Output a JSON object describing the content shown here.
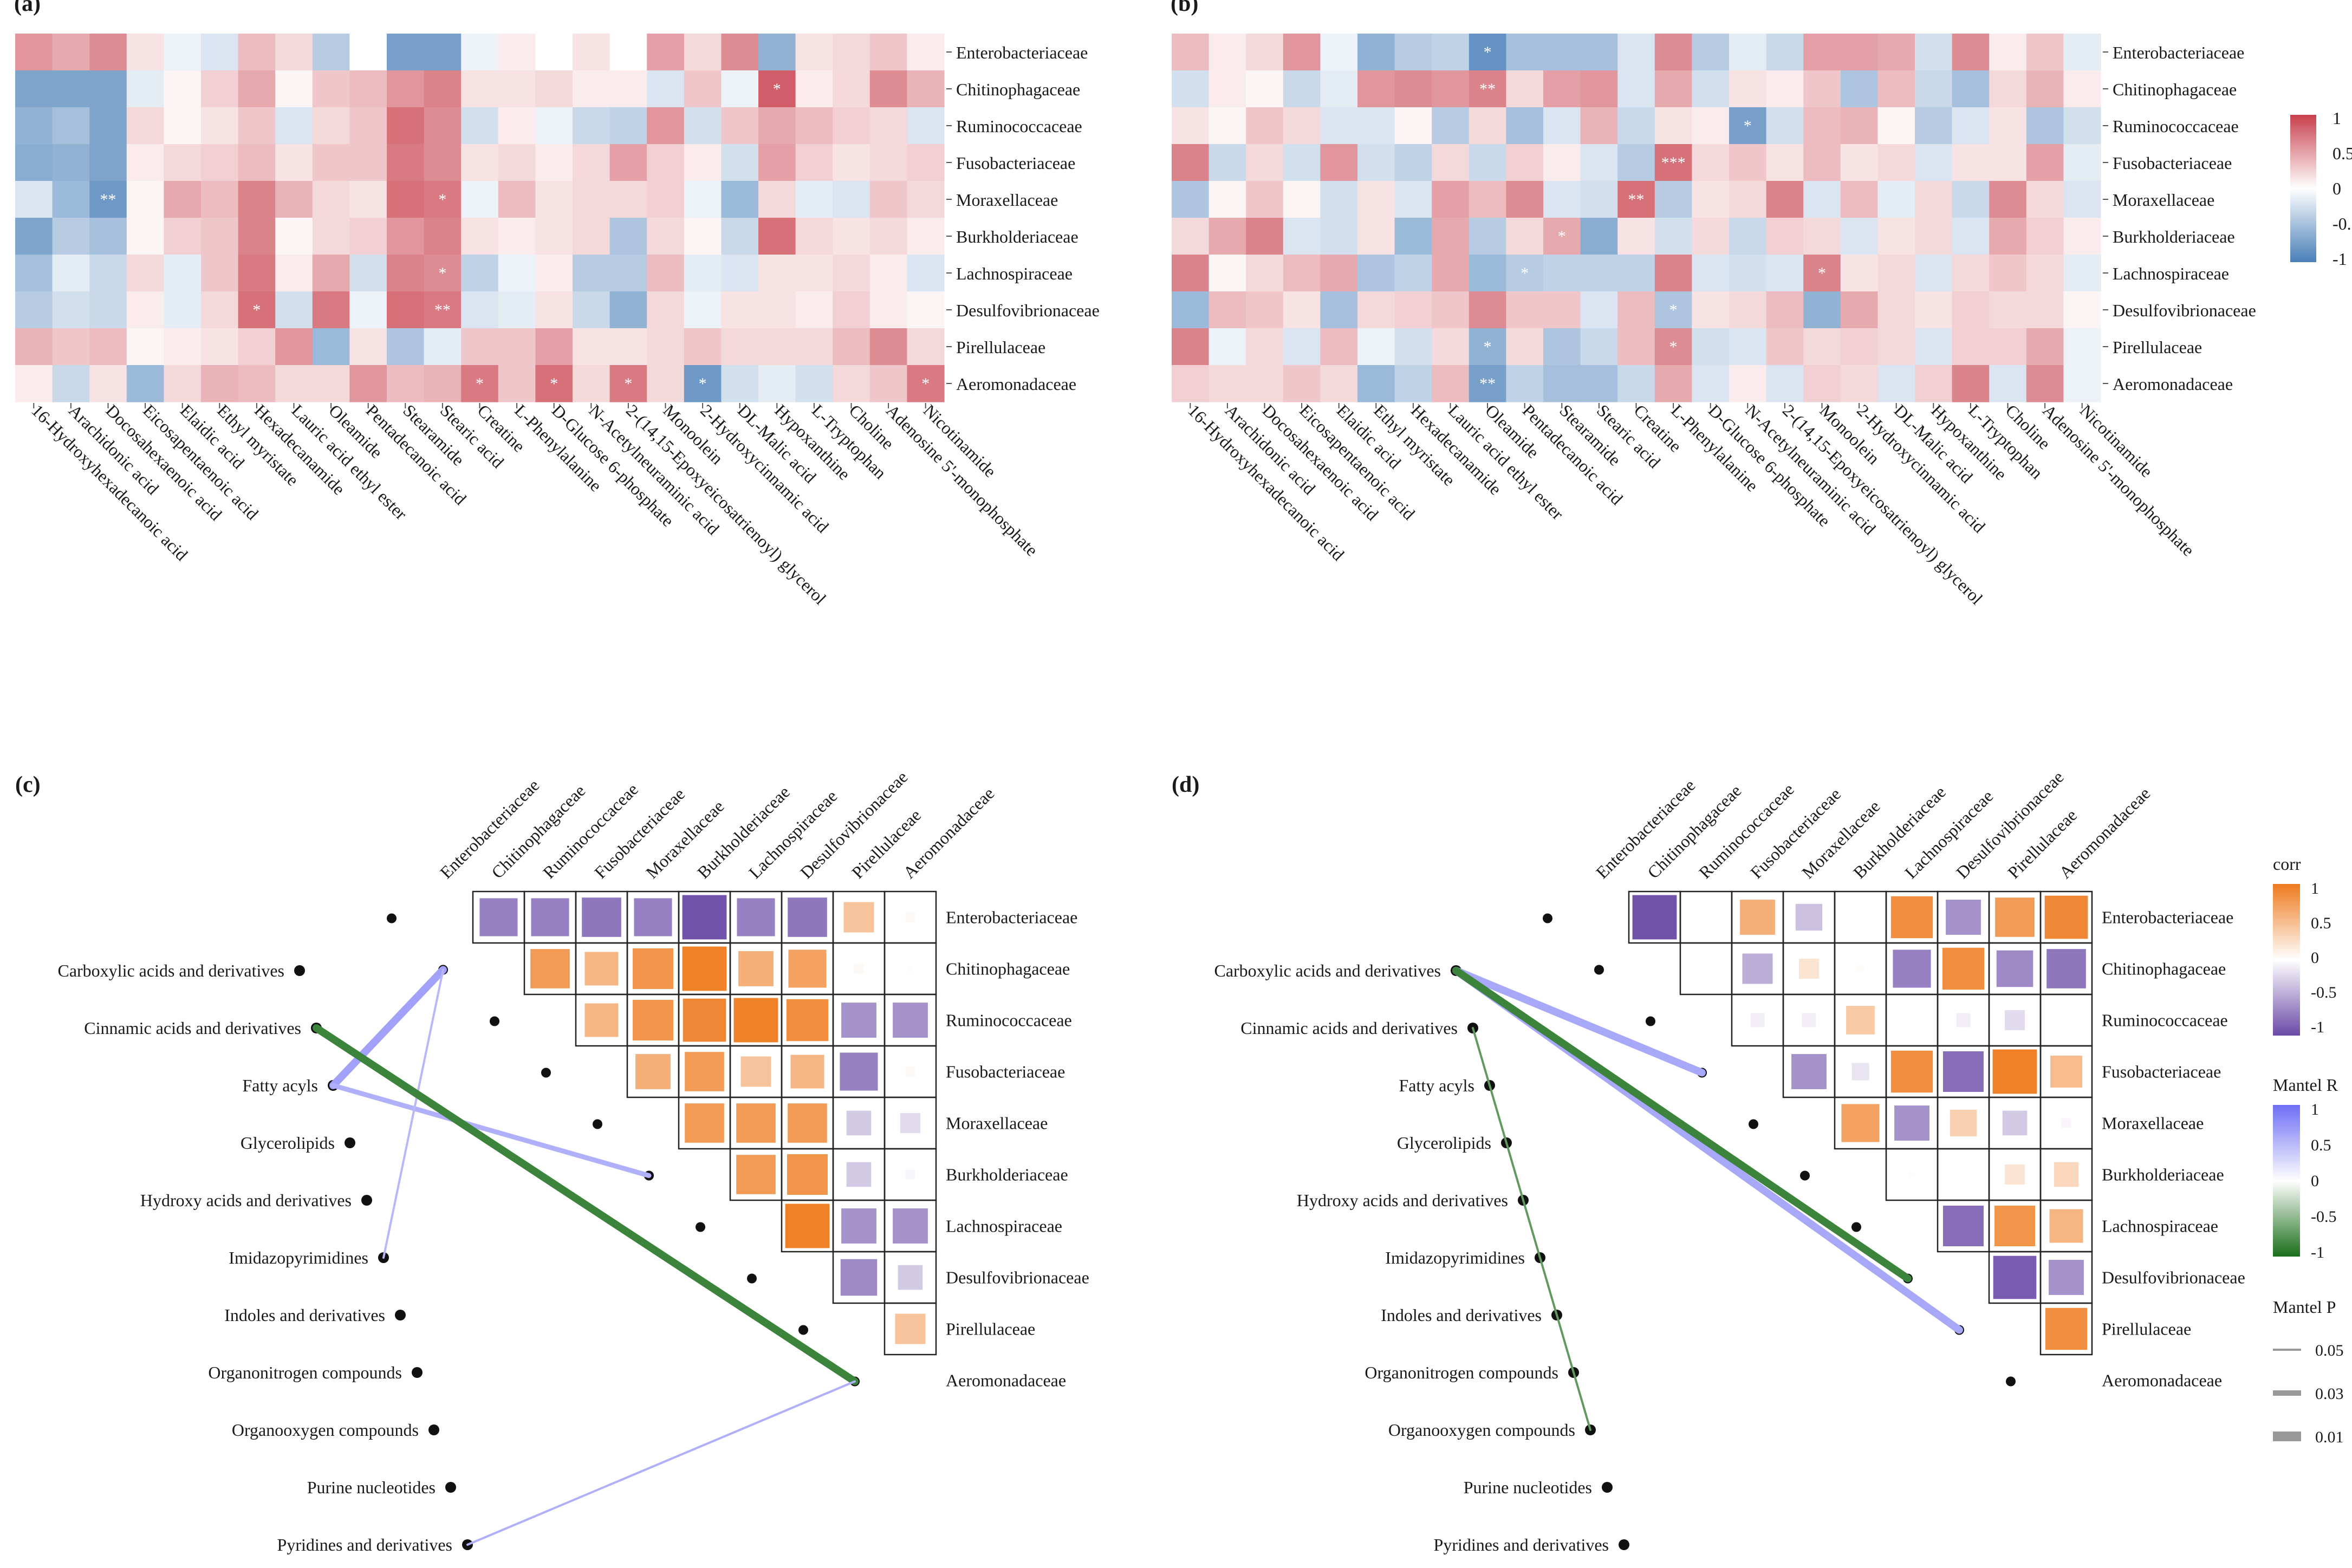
{
  "panel_labels": [
    "(a)",
    "(b)",
    "(c)",
    "(d)"
  ],
  "families": [
    "Enterobacteriaceae",
    "Chitinophagaceae",
    "Ruminococcaceae",
    "Fusobacteriaceae",
    "Moraxellaceae",
    "Burkholderiaceae",
    "Lachnospiraceae",
    "Desulfovibrionaceae",
    "Pirellulaceae",
    "Aeromonadaceae"
  ],
  "metabolites": [
    "16-Hydroxyhexadecanoic acid",
    "Arachidonic acid",
    "Docosahexaenoic acid",
    "Eicosapentaenoic acid",
    "Elaidic acid",
    "Ethyl myristate",
    "Hexadecanamide",
    "Lauric acid ethyl ester",
    "Oleamide",
    "Pentadecanoic acid",
    "Stearamide",
    "Stearic acid",
    "Creatine",
    "L-Phenylalanine",
    "D-Glucose 6-phosphate",
    "N-Acetylneuraminic acid",
    "2-(14,15-Epoxyeicosatrienoyl) glycerol",
    "Monoolein",
    "2-Hydroxycinnamic acid",
    "DL-Malic acid",
    "Hypoxanthine",
    "L-Tryptophan",
    "Choline",
    "Adenosine 5'-monophosphate",
    "Nicotinamide"
  ],
  "classes": [
    "Carboxylic acids and derivatives",
    "Cinnamic acids and derivatives",
    "Fatty acyls",
    "Glycerolipids",
    "Hydroxy acids and derivatives",
    "Imidazopyrimidines",
    "Indoles and derivatives",
    "Organonitrogen compounds",
    "Organooxygen compounds",
    "Purine nucleotides",
    "Pyridines and derivatives"
  ],
  "heatmap_legend": {
    "ticks": [
      "1",
      "0.5",
      "0",
      "-0.5",
      "-1"
    ]
  },
  "corr_legend": {
    "title": "corr",
    "ticks": [
      "1",
      "0.5",
      "0",
      "-0.5",
      "-1"
    ]
  },
  "mantel_r_legend": {
    "title": "Mantel R",
    "ticks": [
      "1",
      "0.5",
      "0",
      "-0.5",
      "-1"
    ]
  },
  "mantel_p_legend": {
    "title": "Mantel P",
    "items": [
      "0.05",
      "0.03",
      "0.01"
    ]
  },
  "colors": {
    "neg": "#4a7fb8",
    "pos": "#c8404c",
    "corr_pos": "#ee7a1e",
    "corr_neg": "#6a4aa6",
    "mantel_pos": "#6e6ef5",
    "mantel_neg": "#1a6e1a"
  },
  "chart_data": [
    {
      "type": "heatmap",
      "panel": "(a)",
      "rows_key": "families",
      "cols_key": "metabolites",
      "zlim": [
        -1,
        1
      ],
      "values": [
        [
          0.55,
          0.45,
          0.6,
          0.15,
          -0.1,
          -0.2,
          0.35,
          0.2,
          -0.4,
          0,
          -0.75,
          -0.75,
          -0.1,
          0.1,
          0,
          0.15,
          0,
          0.5,
          0.2,
          0.6,
          -0.6,
          0.15,
          0.2,
          0.3,
          0.1
        ],
        [
          -0.7,
          -0.7,
          -0.7,
          -0.15,
          0.05,
          0.25,
          0.45,
          0.05,
          0.3,
          0.35,
          0.55,
          0.65,
          0.15,
          0.15,
          0.2,
          0.1,
          0.1,
          -0.2,
          0.3,
          -0.1,
          0.85,
          0.1,
          0.2,
          0.6,
          0.4
        ],
        [
          -0.6,
          -0.5,
          -0.7,
          0.2,
          0.05,
          0.15,
          0.3,
          -0.2,
          0.2,
          0.3,
          0.75,
          0.6,
          -0.25,
          0.1,
          -0.1,
          -0.3,
          -0.35,
          0.55,
          -0.25,
          0.3,
          0.45,
          0.35,
          0.25,
          0.2,
          -0.2
        ],
        [
          -0.65,
          -0.6,
          -0.7,
          0.1,
          0.2,
          0.25,
          0.35,
          0.15,
          0.3,
          0.3,
          0.7,
          0.6,
          0.15,
          0.2,
          0.1,
          0.2,
          0.5,
          0.25,
          0.1,
          -0.25,
          0.5,
          0.25,
          0.15,
          0.2,
          0.25
        ],
        [
          -0.2,
          -0.55,
          -0.8,
          0.05,
          0.45,
          0.35,
          0.65,
          0.4,
          0.2,
          0.15,
          0.75,
          0.7,
          -0.1,
          0.35,
          0.15,
          0.2,
          0.2,
          0.25,
          -0.1,
          -0.55,
          0.2,
          -0.15,
          -0.2,
          0.3,
          0.2
        ],
        [
          -0.7,
          -0.4,
          -0.5,
          0.05,
          0.25,
          0.3,
          0.65,
          0.05,
          0.2,
          0.25,
          0.55,
          0.65,
          0.15,
          0.1,
          0.15,
          0.2,
          -0.45,
          0.2,
          0.05,
          -0.3,
          0.75,
          0.2,
          0.15,
          0.2,
          0.1
        ],
        [
          -0.5,
          -0.15,
          -0.3,
          0.2,
          -0.15,
          0.3,
          0.7,
          0.1,
          0.45,
          -0.25,
          0.65,
          0.6,
          -0.35,
          -0.1,
          0.1,
          -0.4,
          -0.4,
          0.35,
          -0.15,
          -0.2,
          0.15,
          0.15,
          0.2,
          0.1,
          -0.2
        ],
        [
          -0.4,
          -0.25,
          -0.3,
          0.1,
          -0.15,
          0.2,
          0.75,
          -0.25,
          0.7,
          -0.1,
          0.75,
          0.7,
          -0.2,
          -0.15,
          0.15,
          -0.3,
          -0.6,
          0.2,
          -0.1,
          0.15,
          0.15,
          0.1,
          0.25,
          0.1,
          0.05
        ],
        [
          0.4,
          0.3,
          0.35,
          0.05,
          0.1,
          0.15,
          0.25,
          0.55,
          -0.55,
          0.15,
          -0.45,
          -0.15,
          0.3,
          0.3,
          0.5,
          0.15,
          0.15,
          0.2,
          0.3,
          0.2,
          0.2,
          0.2,
          0.35,
          0.6,
          0.2
        ],
        [
          0.1,
          -0.3,
          0.15,
          -0.55,
          0.2,
          0.4,
          0.35,
          0.2,
          0.2,
          0.55,
          0.35,
          0.4,
          0.7,
          0.3,
          0.75,
          0.2,
          0.7,
          0.2,
          -0.8,
          -0.25,
          -0.15,
          -0.25,
          0.2,
          0.3,
          0.7
        ]
      ],
      "stars": [
        [
          1,
          20,
          "*"
        ],
        [
          4,
          2,
          "**"
        ],
        [
          4,
          11,
          "*"
        ],
        [
          6,
          11,
          "*"
        ],
        [
          7,
          6,
          "*"
        ],
        [
          7,
          11,
          "**"
        ],
        [
          9,
          12,
          "*"
        ],
        [
          9,
          14,
          "*"
        ],
        [
          9,
          16,
          "*"
        ],
        [
          9,
          18,
          "*"
        ],
        [
          9,
          24,
          "*"
        ]
      ]
    },
    {
      "type": "heatmap",
      "panel": "(b)",
      "rows_key": "families",
      "cols_key": "metabolites",
      "zlim": [
        -1,
        1
      ],
      "values": [
        [
          0.35,
          0.1,
          0.2,
          0.55,
          -0.1,
          -0.6,
          -0.4,
          -0.35,
          -0.85,
          -0.5,
          -0.5,
          -0.5,
          -0.2,
          0.6,
          -0.4,
          -0.15,
          -0.3,
          0.5,
          0.5,
          0.45,
          -0.25,
          0.6,
          0.1,
          0.3,
          -0.15
        ],
        [
          -0.25,
          0.1,
          0.05,
          -0.3,
          -0.15,
          0.55,
          0.6,
          0.55,
          0.65,
          0.2,
          0.5,
          0.55,
          -0.2,
          0.45,
          -0.25,
          0.15,
          0.1,
          0.3,
          -0.45,
          0.35,
          -0.3,
          -0.5,
          0.2,
          0.4,
          0.1
        ],
        [
          0.15,
          0.05,
          0.3,
          0.2,
          -0.2,
          -0.2,
          0.05,
          -0.4,
          0.2,
          -0.5,
          -0.2,
          0.4,
          -0.3,
          0.15,
          0.1,
          -0.75,
          -0.25,
          0.35,
          0.4,
          0.05,
          -0.4,
          -0.2,
          0.15,
          -0.45,
          -0.25
        ],
        [
          0.65,
          -0.3,
          0.2,
          -0.25,
          0.55,
          -0.25,
          -0.35,
          0.2,
          -0.3,
          0.25,
          0.1,
          -0.2,
          -0.4,
          0.75,
          0.2,
          0.3,
          0.15,
          0.35,
          0.15,
          0.2,
          -0.2,
          0.15,
          0.15,
          0.5,
          -0.15
        ],
        [
          -0.45,
          0.05,
          0.3,
          0.05,
          -0.25,
          0.15,
          -0.2,
          0.5,
          0.35,
          0.6,
          -0.2,
          -0.25,
          0.75,
          -0.4,
          0.15,
          0.2,
          0.65,
          -0.2,
          0.35,
          -0.15,
          0.2,
          -0.3,
          0.6,
          0.2,
          -0.2
        ],
        [
          0.2,
          0.45,
          0.65,
          -0.2,
          -0.25,
          0.15,
          -0.55,
          0.45,
          -0.4,
          0.2,
          0.45,
          -0.65,
          0.15,
          -0.25,
          0.2,
          -0.3,
          0.25,
          0.2,
          -0.2,
          0.15,
          0.2,
          -0.2,
          0.45,
          0.25,
          0.1
        ],
        [
          0.65,
          0.05,
          0.2,
          0.35,
          0.45,
          -0.45,
          -0.35,
          0.45,
          -0.55,
          -0.4,
          -0.35,
          -0.35,
          -0.35,
          0.65,
          -0.2,
          -0.25,
          -0.2,
          0.65,
          0.15,
          0.2,
          -0.2,
          0.2,
          0.3,
          0.2,
          -0.15
        ],
        [
          -0.55,
          0.35,
          0.3,
          0.15,
          -0.5,
          0.2,
          0.25,
          0.3,
          0.6,
          0.3,
          0.3,
          -0.2,
          0.35,
          -0.45,
          0.15,
          0.2,
          0.35,
          -0.6,
          0.45,
          0.2,
          0.15,
          0.25,
          0.2,
          0.2,
          0.05
        ],
        [
          0.65,
          -0.1,
          0.2,
          -0.2,
          0.35,
          -0.1,
          -0.25,
          0.2,
          -0.6,
          0.2,
          -0.45,
          -0.3,
          0.35,
          0.6,
          -0.25,
          -0.2,
          0.3,
          0.2,
          0.25,
          0.2,
          -0.2,
          0.25,
          0.25,
          0.45,
          -0.1
        ],
        [
          0.25,
          0.2,
          0.2,
          0.3,
          0.2,
          -0.55,
          -0.35,
          0.35,
          -0.75,
          -0.35,
          -0.5,
          -0.5,
          -0.3,
          0.45,
          -0.2,
          0.1,
          -0.2,
          0.25,
          0.2,
          -0.2,
          0.25,
          0.65,
          -0.2,
          0.6,
          -0.1
        ]
      ],
      "stars": [
        [
          0,
          8,
          "*"
        ],
        [
          1,
          8,
          "**"
        ],
        [
          2,
          15,
          "*"
        ],
        [
          3,
          13,
          "***"
        ],
        [
          4,
          12,
          "**"
        ],
        [
          5,
          10,
          "*"
        ],
        [
          6,
          9,
          "*"
        ],
        [
          6,
          17,
          "*"
        ],
        [
          7,
          13,
          "*"
        ],
        [
          8,
          8,
          "*"
        ],
        [
          8,
          13,
          "*"
        ],
        [
          9,
          8,
          "**"
        ]
      ]
    },
    {
      "type": "correlogram",
      "panel": "(c)",
      "labels_key": "families",
      "upper_triangle": [
        [
          1,
          2,
          -0.7
        ],
        [
          1,
          3,
          -0.7
        ],
        [
          1,
          4,
          -0.75
        ],
        [
          1,
          5,
          -0.7
        ],
        [
          1,
          6,
          -0.95
        ],
        [
          1,
          7,
          -0.7
        ],
        [
          1,
          8,
          -0.75
        ],
        [
          1,
          9,
          0.45
        ],
        [
          1,
          10,
          0.05
        ],
        [
          2,
          3,
          0.75
        ],
        [
          2,
          4,
          0.55
        ],
        [
          2,
          5,
          0.8
        ],
        [
          2,
          6,
          0.95
        ],
        [
          2,
          7,
          0.6
        ],
        [
          2,
          8,
          0.7
        ],
        [
          2,
          9,
          0.05
        ],
        [
          2,
          10,
          0.02
        ],
        [
          3,
          4,
          0.55
        ],
        [
          3,
          5,
          0.8
        ],
        [
          3,
          6,
          0.9
        ],
        [
          3,
          7,
          0.95
        ],
        [
          3,
          8,
          0.85
        ],
        [
          3,
          9,
          -0.6
        ],
        [
          3,
          10,
          -0.6
        ],
        [
          4,
          5,
          0.6
        ],
        [
          4,
          6,
          0.75
        ],
        [
          4,
          7,
          0.45
        ],
        [
          4,
          8,
          0.55
        ],
        [
          4,
          9,
          -0.7
        ],
        [
          4,
          10,
          0.05
        ],
        [
          5,
          6,
          0.75
        ],
        [
          5,
          7,
          0.75
        ],
        [
          5,
          8,
          0.75
        ],
        [
          5,
          9,
          -0.3
        ],
        [
          5,
          10,
          -0.2
        ],
        [
          6,
          7,
          0.75
        ],
        [
          6,
          8,
          0.8
        ],
        [
          6,
          9,
          -0.3
        ],
        [
          6,
          10,
          -0.05
        ],
        [
          7,
          8,
          0.95
        ],
        [
          7,
          9,
          -0.6
        ],
        [
          7,
          10,
          -0.6
        ],
        [
          8,
          9,
          -0.65
        ],
        [
          8,
          10,
          -0.3
        ],
        [
          9,
          10,
          0.45
        ]
      ],
      "mantel_links": [
        {
          "class": "Fatty acyls",
          "family": "Chitinophagaceae",
          "r": 0.65,
          "p": 0.01
        },
        {
          "class": "Fatty acyls",
          "family": "Burkholderiaceae",
          "r": 0.55,
          "p": 0.03
        },
        {
          "class": "Imidazopyrimidines",
          "family": "Chitinophagaceae",
          "r": 0.5,
          "p": 0.05
        },
        {
          "class": "Cinnamic acids and derivatives",
          "family": "Aeromonadaceae",
          "r": -0.85,
          "p": 0.01
        },
        {
          "class": "Pyridines and derivatives",
          "family": "Aeromonadaceae",
          "r": 0.55,
          "p": 0.05
        }
      ]
    },
    {
      "type": "correlogram",
      "panel": "(d)",
      "labels_key": "families",
      "upper_triangle": [
        [
          1,
          2,
          -0.95
        ],
        [
          1,
          3,
          0
        ],
        [
          1,
          4,
          0.6
        ],
        [
          1,
          5,
          -0.35
        ],
        [
          1,
          6,
          0
        ],
        [
          1,
          7,
          0.85
        ],
        [
          1,
          8,
          -0.6
        ],
        [
          1,
          9,
          0.75
        ],
        [
          1,
          10,
          0.9
        ],
        [
          2,
          3,
          0
        ],
        [
          2,
          4,
          -0.45
        ],
        [
          2,
          5,
          0.2
        ],
        [
          2,
          6,
          0.03
        ],
        [
          2,
          7,
          -0.7
        ],
        [
          2,
          8,
          0.85
        ],
        [
          2,
          9,
          -0.65
        ],
        [
          2,
          10,
          -0.75
        ],
        [
          3,
          4,
          -0.1
        ],
        [
          3,
          5,
          -0.1
        ],
        [
          3,
          6,
          0.4
        ],
        [
          3,
          7,
          0
        ],
        [
          3,
          8,
          -0.1
        ],
        [
          3,
          9,
          -0.2
        ],
        [
          4,
          5,
          -0.6
        ],
        [
          4,
          6,
          -0.15
        ],
        [
          4,
          7,
          0.85
        ],
        [
          4,
          8,
          -0.8
        ],
        [
          4,
          9,
          0.95
        ],
        [
          4,
          10,
          0.5
        ],
        [
          5,
          6,
          0.7
        ],
        [
          5,
          7,
          -0.6
        ],
        [
          5,
          8,
          0.35
        ],
        [
          5,
          9,
          -0.3
        ],
        [
          5,
          10,
          -0.05
        ],
        [
          6,
          7,
          -0.02
        ],
        [
          6,
          9,
          0.2
        ],
        [
          6,
          10,
          0.3
        ],
        [
          7,
          8,
          -0.8
        ],
        [
          7,
          9,
          0.8
        ],
        [
          7,
          10,
          0.55
        ],
        [
          8,
          9,
          -0.9
        ],
        [
          8,
          10,
          -0.6
        ],
        [
          9,
          10,
          0.85
        ]
      ],
      "mantel_links": [
        {
          "class": "Carboxylic acids and derivatives",
          "family": "Fusobacteriaceae",
          "r": 0.6,
          "p": 0.01
        },
        {
          "class": "Carboxylic acids and derivatives",
          "family": "Pirellulaceae",
          "r": 0.6,
          "p": 0.01
        },
        {
          "class": "Carboxylic acids and derivatives",
          "family": "Desulfovibrionaceae",
          "r": -0.85,
          "p": 0.01
        },
        {
          "class": "Cinnamic acids and derivatives",
          "family": "Organooxygen compounds",
          "r": -0.7,
          "p": 0.05
        }
      ]
    }
  ]
}
